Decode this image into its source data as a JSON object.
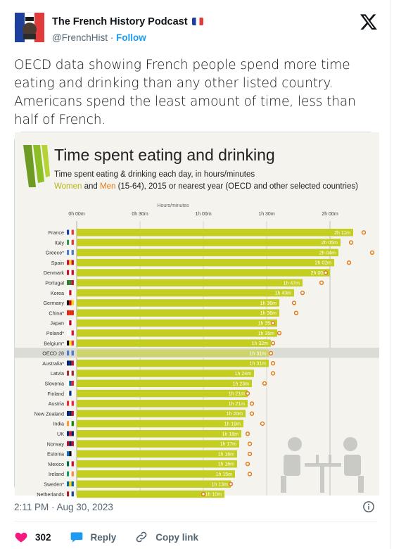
{
  "author": {
    "name": "The French History Podcast",
    "handle": "@FrenchHist",
    "separator": "·",
    "follow_label": "Follow"
  },
  "tweet": {
    "text": "OECD data showing French people spend more time eating and drinking than any other listed country. Americans spend the least amount of time, less than half of French.",
    "timestamp": "2:11 PM · Aug 30, 2023"
  },
  "actions": {
    "likes": "302",
    "reply_label": "Reply",
    "copy_link_label": "Copy link"
  },
  "colors": {
    "like": "#f91880",
    "link": "#1d9bf0",
    "bar": "#c4ce21",
    "oecd_green": "#8cbf26"
  },
  "chart_data": {
    "type": "bar",
    "title": "Time spent eating and drinking",
    "subtitle_line1": "Time spent eating & drinking each day, in hours/minutes",
    "legend_women": "Women",
    "legend_and": "and",
    "legend_men": "Men",
    "subtitle_line2_rest": "(15-64), 2015 or nearest year (OECD and other selected countries)",
    "axis_title": "Hours/minutes",
    "xticks": [
      "0h 00m",
      "0h 30m",
      "1h 00m",
      "1h 30m",
      "2h 00m"
    ],
    "xlim_minutes": [
      0,
      150
    ],
    "series": [
      {
        "name": "Women",
        "type": "bar"
      },
      {
        "name": "Men",
        "type": "marker"
      }
    ],
    "categories": [
      "France",
      "Italy",
      "Greece*",
      "Spain",
      "Denmark",
      "Portugal",
      "Korea",
      "Germany",
      "China*",
      "Japan",
      "Poland*",
      "Belgium*",
      "OECD 28",
      "Australia*",
      "Latvia",
      "Slovenia",
      "Finland",
      "Austria",
      "New Zealand",
      "India",
      "UK",
      "Norway",
      "Estonia",
      "Mexico",
      "Ireland",
      "Sweden*",
      "Netherlands"
    ],
    "labels": [
      "2h 11m",
      "2h 05m",
      "2h 04m",
      "2h 02m",
      "2h 00m",
      "1h 47m",
      "1h 43m",
      "1h 36m",
      "1h 36m",
      "1h 35m",
      "1h 35m",
      "1h 32m",
      "1h 31m",
      "1h 31m",
      "1h 24m",
      "1h 23m",
      "1h 21m",
      "1h 21m",
      "1h 20m",
      "1h 19m",
      "1h 18m",
      "1h 17m",
      "1h 16m",
      "1h 16m",
      "1h 15m",
      "1h 13m",
      "1h 10m"
    ],
    "values_minutes": [
      131,
      125,
      124,
      122,
      120,
      107,
      103,
      96,
      96,
      95,
      95,
      92,
      91,
      91,
      84,
      83,
      81,
      81,
      80,
      79,
      78,
      77,
      76,
      76,
      75,
      73,
      70
    ],
    "men_minutes": [
      136,
      130,
      140,
      129,
      118,
      116,
      107,
      103,
      104,
      93,
      96,
      93,
      92,
      93,
      93,
      89,
      81,
      83,
      83,
      88,
      81,
      82,
      82,
      81,
      82,
      73,
      60
    ],
    "highlight": "OECD 28"
  }
}
